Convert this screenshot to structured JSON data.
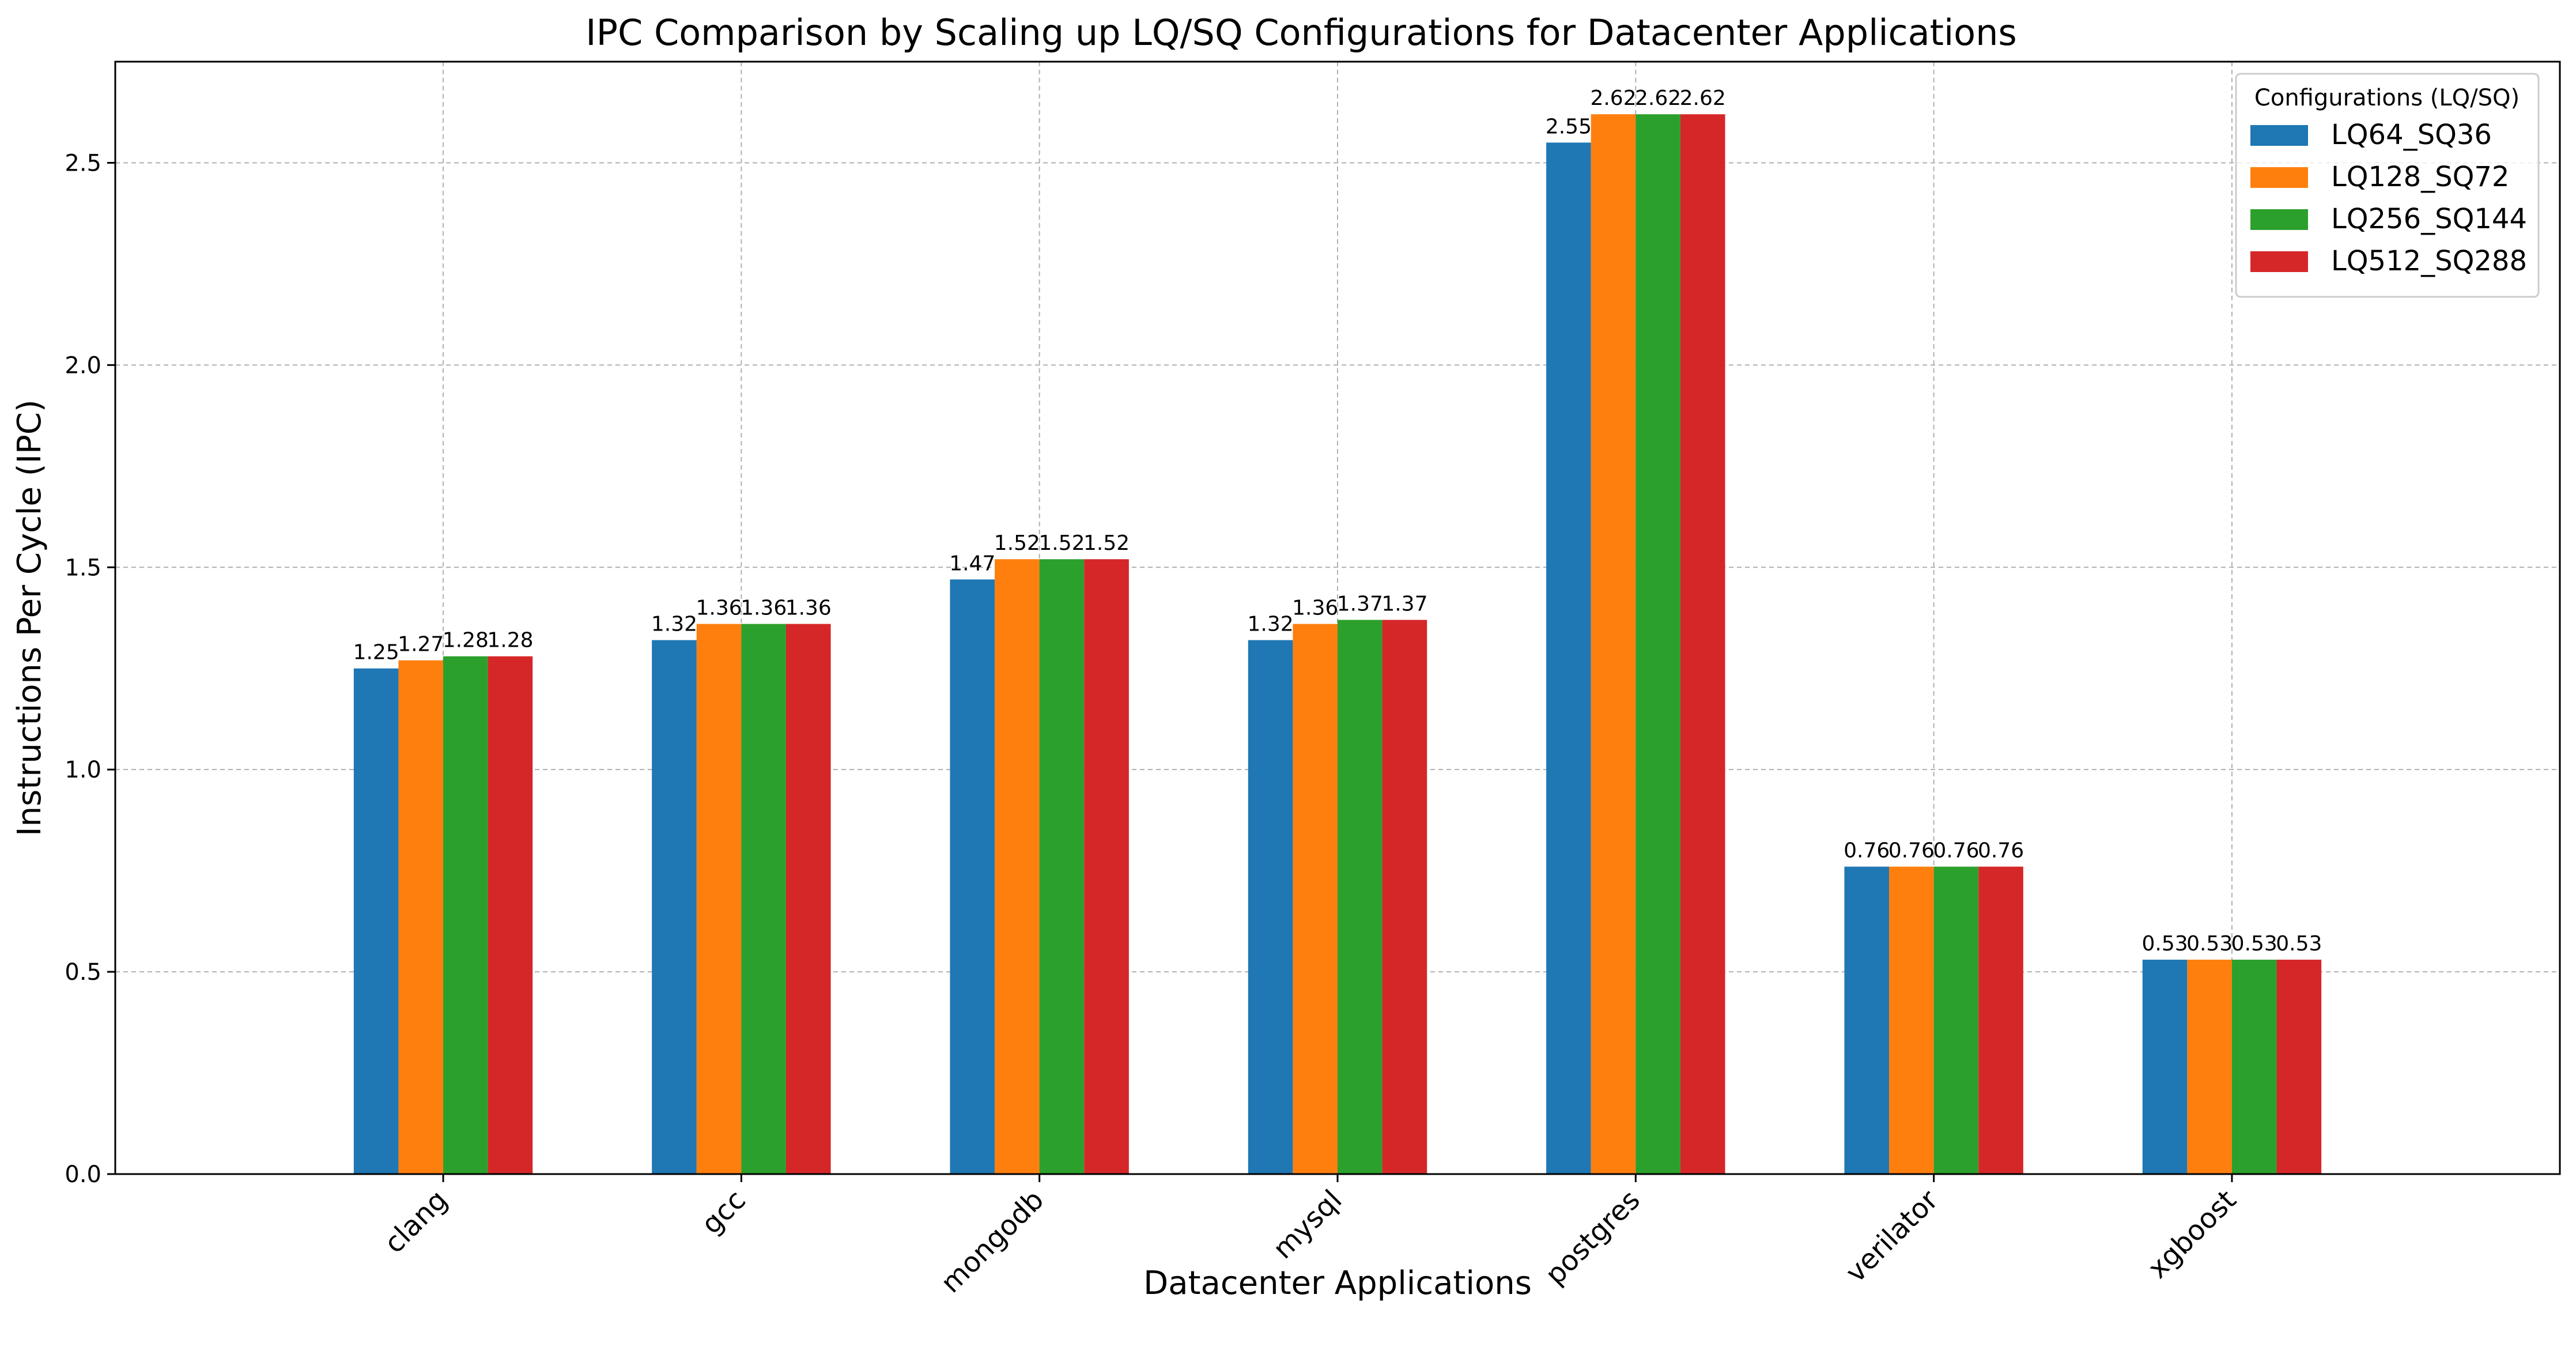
{
  "chart_data": {
    "type": "bar",
    "title": "IPC Comparison by Scaling up LQ/SQ Configurations for Datacenter Applications",
    "xlabel": "Datacenter Applications",
    "ylabel": "Instructions Per Cycle (IPC)",
    "ylim": [
      0,
      2.75
    ],
    "yticks": [
      0.0,
      0.5,
      1.0,
      1.5,
      2.0,
      2.5
    ],
    "ytick_labels": [
      "0.0",
      "0.5",
      "1.0",
      "1.5",
      "2.0",
      "2.5"
    ],
    "grid": true,
    "legend_title": "Configurations (LQ/SQ)",
    "legend_position": "top-right",
    "categories": [
      "clang",
      "gcc",
      "mongodb",
      "mysql",
      "postgres",
      "verilator",
      "xgboost"
    ],
    "series": [
      {
        "name": "LQ64_SQ36",
        "color": "#1f77b4",
        "values": [
          1.25,
          1.32,
          1.47,
          1.32,
          2.55,
          0.76,
          0.53
        ]
      },
      {
        "name": "LQ128_SQ72",
        "color": "#ff7f0e",
        "values": [
          1.27,
          1.36,
          1.52,
          1.36,
          2.62,
          0.76,
          0.53
        ]
      },
      {
        "name": "LQ256_SQ144",
        "color": "#2ca02c",
        "values": [
          1.28,
          1.36,
          1.52,
          1.37,
          2.62,
          0.76,
          0.53
        ]
      },
      {
        "name": "LQ512_SQ288",
        "color": "#d62728",
        "values": [
          1.28,
          1.36,
          1.52,
          1.37,
          2.62,
          0.76,
          0.53
        ]
      }
    ]
  }
}
